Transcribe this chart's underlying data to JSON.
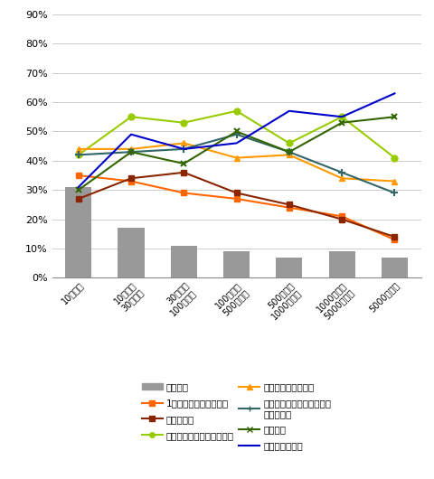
{
  "categories": [
    "10人未満",
    "10人以上\n30人未満",
    "30人以上\n100人未満",
    "100人以上\n500人未満",
    "500人以上\n1000人未満",
    "1000人以上\n5000人未満",
    "5000人以上"
  ],
  "bar_values": [
    31,
    17,
    11,
    9,
    7,
    9,
    7
  ],
  "bar_color": "#999999",
  "lines": [
    {
      "key": "1年以上の育児休業制度",
      "values": [
        35,
        33,
        29,
        27,
        24,
        21,
        13
      ],
      "color": "#FF6600",
      "marker": "s",
      "markersize": 4,
      "markeredgewidth": 1
    },
    {
      "key": "短時間勤務",
      "values": [
        27,
        34,
        36,
        29,
        25,
        20,
        14
      ],
      "color": "#8B2500",
      "marker": "s",
      "markersize": 4,
      "markeredgewidth": 1
    },
    {
      "key": "育児サービス利用料の補助",
      "values": [
        42,
        55,
        53,
        57,
        46,
        55,
        41
      ],
      "color": "#99CC00",
      "marker": "o",
      "markersize": 5,
      "markeredgewidth": 1
    },
    {
      "key": "フレックスタイム制",
      "values": [
        44,
        44,
        46,
        41,
        42,
        34,
        33
      ],
      "color": "#FF9900",
      "marker": "^",
      "markersize": 5,
      "markeredgewidth": 1
    },
    {
      "key": "子どもが病気の際の看護休暇（有休）",
      "values": [
        42,
        43,
        44,
        49,
        43,
        36,
        29
      ],
      "color": "#336666",
      "marker": "+",
      "markersize": 6,
      "markeredgewidth": 1.5
    },
    {
      "key": "在宅勤務",
      "values": [
        30,
        43,
        39,
        50,
        43,
        53,
        55
      ],
      "color": "#336600",
      "marker": "x",
      "markersize": 5,
      "markeredgewidth": 1.5
    },
    {
      "key": "事務所内保育所",
      "values": [
        31,
        49,
        44,
        46,
        57,
        55,
        63
      ],
      "color": "#0000CC",
      "marker": null,
      "markersize": 0,
      "markeredgewidth": 1
    }
  ],
  "ylim": [
    0,
    90
  ],
  "yticks": [
    0,
    10,
    20,
    30,
    40,
    50,
    60,
    70,
    80,
    90
  ],
  "yticklabels": [
    "0%",
    "10%",
    "20%",
    "30%",
    "40%",
    "50%",
    "60%",
    "70%",
    "80%",
    "90%"
  ],
  "legend_col1": [
    {
      "label": "特にない",
      "type": "bar",
      "color": "#999999",
      "marker": null
    },
    {
      "label": "短時間勤務",
      "type": "line",
      "color": "#8B2500",
      "marker": "s"
    },
    {
      "label": "フレックスタイム制",
      "type": "line",
      "color": "#FF9900",
      "marker": "^"
    },
    {
      "label": "在宅勤務",
      "type": "line",
      "color": "#336600",
      "marker": "x"
    }
  ],
  "legend_col2": [
    {
      "label": "1年以上の育児休業制度",
      "type": "line",
      "color": "#FF6600",
      "marker": "s"
    },
    {
      "label": "育児サービス利用料の補助",
      "type": "line",
      "color": "#99CC00",
      "marker": "o"
    },
    {
      "label": "子どもが病気の際の看護休\n暇（有休）",
      "type": "line",
      "color": "#336666",
      "marker": "+"
    },
    {
      "label": "事務所内保育所",
      "type": "line",
      "color": "#0000CC",
      "marker": null
    }
  ],
  "background_color": "#FFFFFF",
  "grid_color": "#CCCCCC"
}
